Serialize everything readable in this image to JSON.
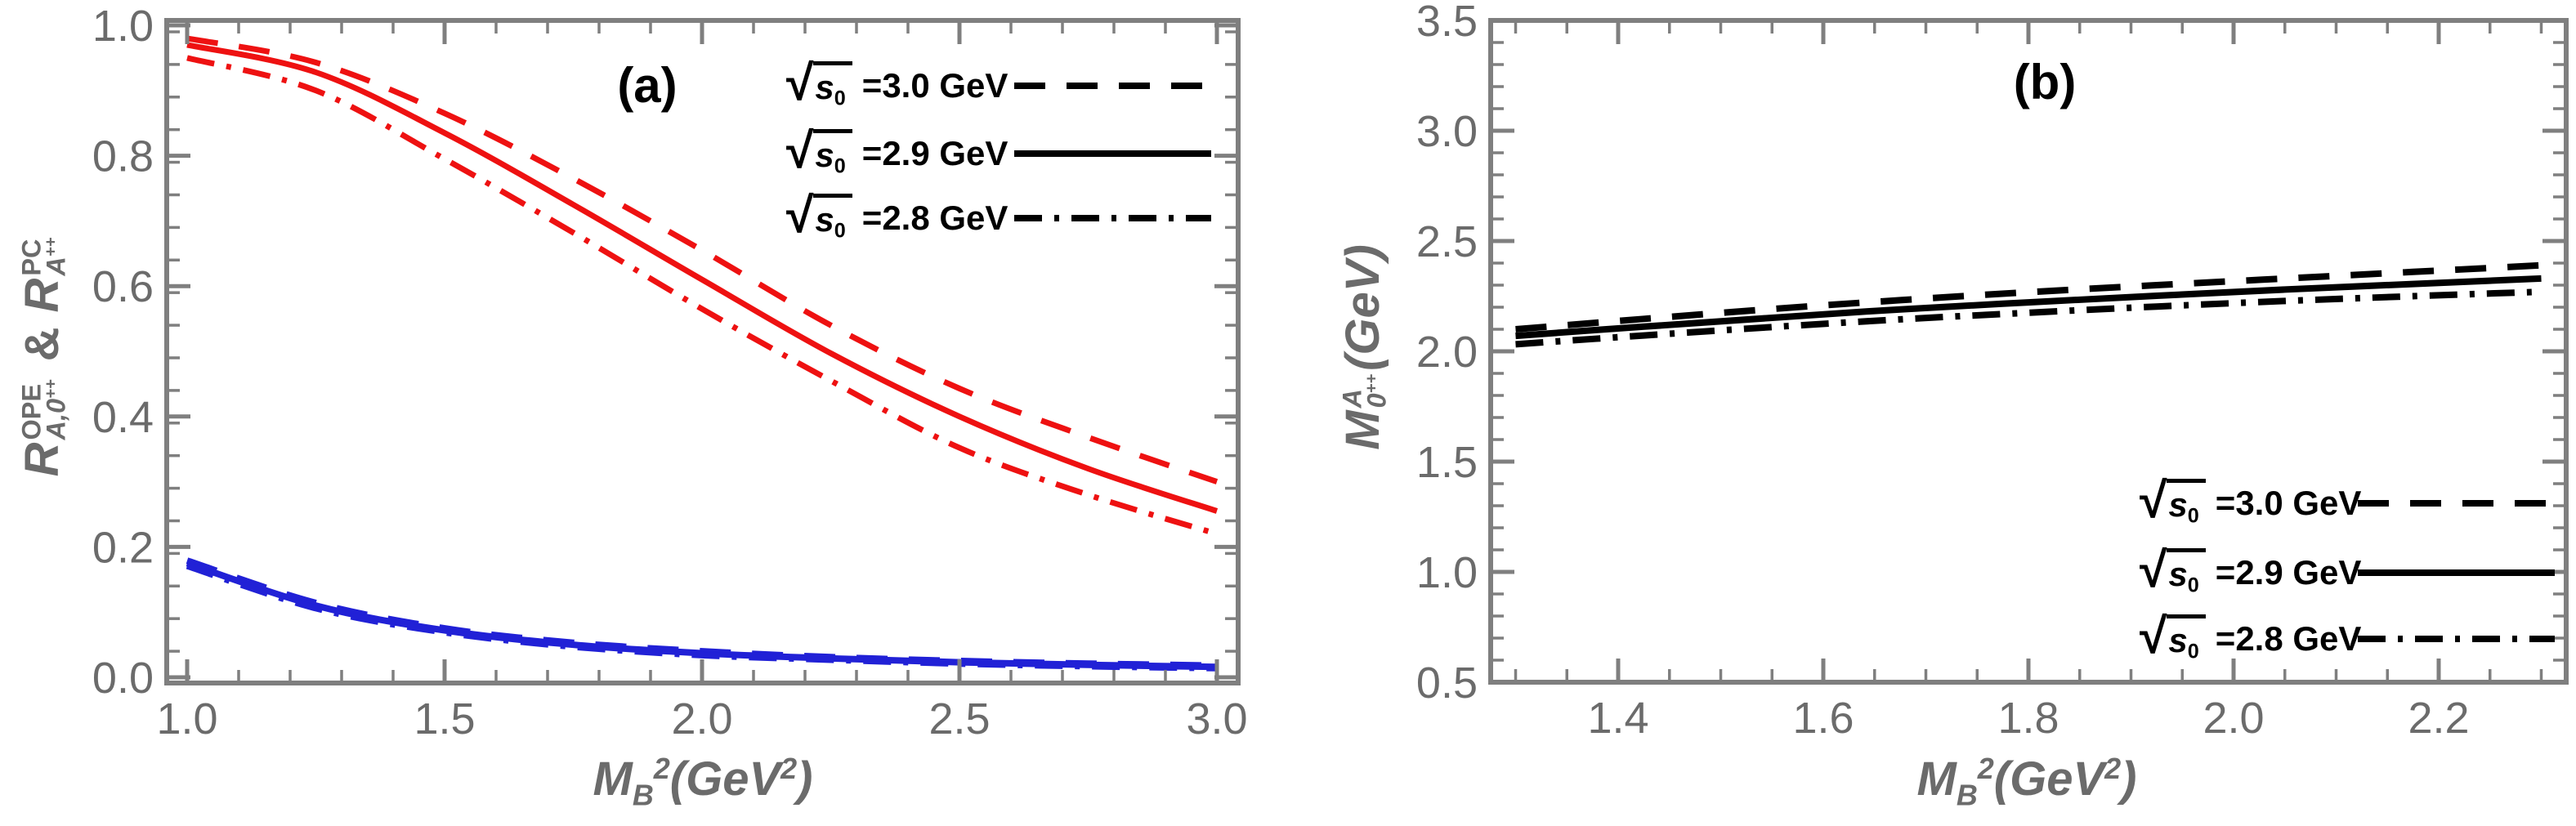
{
  "figure": {
    "background": "#ffffff",
    "description_visible_text_only": true
  },
  "colors": {
    "red": "#ee1111",
    "blue": "#2121d6",
    "black": "#000000",
    "axis": "#7f7f7f",
    "tick_text": "#6b6b6b",
    "label_text": "#6b6b6b",
    "background": "#ffffff"
  },
  "panel_a": {
    "label": "(a)",
    "xlabel": {
      "base": "M",
      "sub": "B",
      "sup": "2",
      "unit": "(GeV",
      "unit_sup": "2",
      "close": ")"
    },
    "ylabel": {
      "r1_base": "R",
      "r1_sup": "OPE",
      "r1_sub": "A,0",
      "r1_subsup": "++",
      "amp": "&",
      "r2_base": "R",
      "r2_sup": "PC",
      "r2_sub": "A",
      "r2_subsup": "++"
    },
    "legend": [
      {
        "sqrt": "√",
        "radicand": "s",
        "radicand_sub": "0",
        "label": "=3.0 GeV",
        "style": "dashed"
      },
      {
        "sqrt": "√",
        "radicand": "s",
        "radicand_sub": "0",
        "label": "=2.9 GeV",
        "style": "solid"
      },
      {
        "sqrt": "√",
        "radicand": "s",
        "radicand_sub": "0",
        "label": "=2.8 GeV",
        "style": "dashdot"
      }
    ]
  },
  "panel_b": {
    "label": "(b)",
    "xlabel": {
      "base": "M",
      "sub": "B",
      "sup": "2",
      "unit": "(GeV",
      "unit_sup": "2",
      "close": ")"
    },
    "ylabel": {
      "base": "M",
      "sup": "A",
      "sub": "0",
      "subsup": "++",
      "unit": "(GeV)"
    },
    "legend": [
      {
        "sqrt": "√",
        "radicand": "s",
        "radicand_sub": "0",
        "label": "=3.0 GeV",
        "style": "dashed"
      },
      {
        "sqrt": "√",
        "radicand": "s",
        "radicand_sub": "0",
        "label": "=2.9 GeV",
        "style": "solid"
      },
      {
        "sqrt": "√",
        "radicand": "s",
        "radicand_sub": "0",
        "label": "=2.8 GeV",
        "style": "dashdot"
      }
    ]
  },
  "chart_data": [
    {
      "type": "line",
      "panel": "(a)",
      "title": "",
      "xlabel": "M_B^2 (GeV^2)",
      "ylabel": "R_{A,0++}^{OPE} & R_{A++}^{PC}",
      "xlim": [
        0.96,
        3.04
      ],
      "ylim": [
        -0.01,
        1.01
      ],
      "grid": false,
      "legend_position": "upper right",
      "x_ticks": [
        1.0,
        1.5,
        2.0,
        2.5,
        3.0
      ],
      "x_tick_labels": [
        "1.0",
        "1.5",
        "2.0",
        "2.5",
        "3.0"
      ],
      "x_minor_step": 0.1,
      "y_ticks": [
        0.0,
        0.2,
        0.4,
        0.6,
        0.8,
        1.0
      ],
      "y_tick_labels": [
        "0.0",
        "0.2",
        "0.4",
        "0.6",
        "0.8",
        "1.0"
      ],
      "y_minor_step": 0.05,
      "x": [
        1.0,
        1.25,
        1.5,
        1.75,
        2.0,
        2.25,
        2.5,
        2.75,
        3.0
      ],
      "series": [
        {
          "name": "R_PC sqrt(s0)=3.0 GeV",
          "color": "red",
          "style": "dashed",
          "values": [
            0.98,
            0.943,
            0.865,
            0.765,
            0.655,
            0.54,
            0.443,
            0.368,
            0.3
          ]
        },
        {
          "name": "R_PC sqrt(s0)=2.9 GeV",
          "color": "red",
          "style": "solid",
          "values": [
            0.97,
            0.928,
            0.835,
            0.725,
            0.61,
            0.497,
            0.4,
            0.32,
            0.255
          ]
        },
        {
          "name": "R_PC sqrt(s0)=2.8 GeV",
          "color": "red",
          "style": "dashdot",
          "values": [
            0.95,
            0.9,
            0.795,
            0.682,
            0.565,
            0.455,
            0.352,
            0.28,
            0.22
          ]
        },
        {
          "name": "R_OPE sqrt(s0)=3.0 GeV",
          "color": "blue",
          "style": "dashed",
          "values": [
            0.179,
            0.114,
            0.075,
            0.053,
            0.04,
            0.031,
            0.025,
            0.021,
            0.018
          ]
        },
        {
          "name": "R_OPE sqrt(s0)=2.9 GeV",
          "color": "blue",
          "style": "solid",
          "values": [
            0.175,
            0.11,
            0.072,
            0.05,
            0.037,
            0.029,
            0.023,
            0.019,
            0.016
          ]
        },
        {
          "name": "R_OPE sqrt(s0)=2.8 GeV",
          "color": "blue",
          "style": "dashdot",
          "values": [
            0.171,
            0.106,
            0.069,
            0.047,
            0.034,
            0.027,
            0.021,
            0.017,
            0.014
          ]
        }
      ]
    },
    {
      "type": "line",
      "panel": "(b)",
      "title": "",
      "xlabel": "M_B^2 (GeV^2)",
      "ylabel": "M_{0++}^{A} (GeV)",
      "xlim": [
        1.275,
        2.325
      ],
      "ylim": [
        0.5,
        3.5
      ],
      "grid": false,
      "legend_position": "lower right",
      "x_ticks": [
        1.4,
        1.6,
        1.8,
        2.0,
        2.2
      ],
      "x_tick_labels": [
        "1.4",
        "1.6",
        "1.8",
        "2.0",
        "2.2"
      ],
      "x_minor_step": 0.05,
      "y_ticks": [
        0.5,
        1.0,
        1.5,
        2.0,
        2.5,
        3.0,
        3.5
      ],
      "y_tick_labels": [
        "0.5",
        "1.0",
        "1.5",
        "2.0",
        "2.5",
        "3.0",
        "3.5"
      ],
      "y_minor_step": 0.1,
      "x": [
        1.3,
        1.425,
        1.55,
        1.675,
        1.8,
        1.925,
        2.05,
        2.175,
        2.3
      ],
      "series": [
        {
          "name": "M sqrt(s0)=3.0 GeV",
          "color": "black",
          "style": "dashed",
          "values": [
            2.1,
            2.147,
            2.192,
            2.232,
            2.268,
            2.3,
            2.33,
            2.36,
            2.39
          ]
        },
        {
          "name": "M sqrt(s0)=2.9 GeV",
          "color": "black",
          "style": "solid",
          "values": [
            2.07,
            2.112,
            2.152,
            2.19,
            2.222,
            2.252,
            2.28,
            2.305,
            2.33
          ]
        },
        {
          "name": "M sqrt(s0)=2.8 GeV",
          "color": "black",
          "style": "dashdot",
          "values": [
            2.032,
            2.072,
            2.11,
            2.145,
            2.175,
            2.203,
            2.228,
            2.25,
            2.27
          ]
        }
      ]
    }
  ]
}
